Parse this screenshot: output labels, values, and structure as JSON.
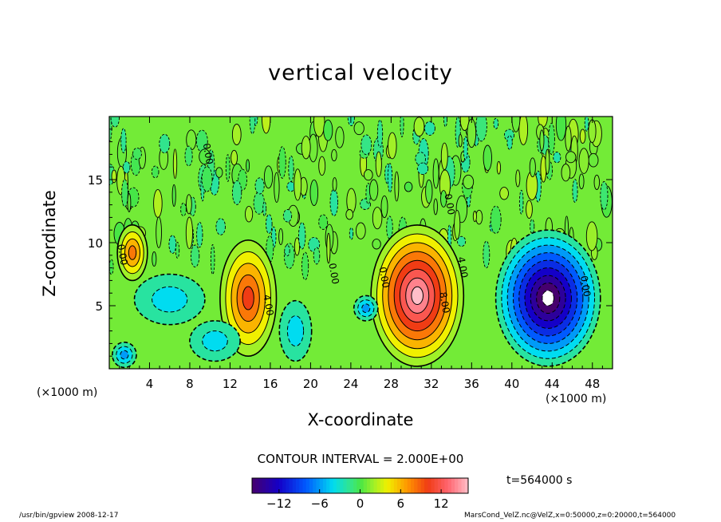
{
  "chart_data": {
    "type": "contour",
    "title": "vertical velocity",
    "xlabel": "X-coordinate",
    "ylabel": "Z-coordinate",
    "x_unit": "(×1000 m)",
    "z_unit": "(×1000 m)",
    "xlim": [
      0,
      50
    ],
    "zlim": [
      0,
      20
    ],
    "x_ticks": [
      4,
      8,
      12,
      16,
      20,
      24,
      28,
      32,
      36,
      40,
      44,
      48
    ],
    "z_ticks": [
      5,
      10,
      15
    ],
    "contour_interval_text": "CONTOUR INTERVAL = 2.000E+00",
    "colorbar": {
      "min": -16,
      "max": 16,
      "ticks": [
        -12,
        -6,
        0,
        6,
        12
      ],
      "tick_labels": [
        "−12",
        "−6",
        "0",
        "6",
        "12"
      ]
    },
    "contour_labels": [
      {
        "text": "4.00",
        "x": 15.5,
        "z": 5.0
      },
      {
        "text": "0.00",
        "x": 22.0,
        "z": 7.5
      },
      {
        "text": "0.00",
        "x": 27.0,
        "z": 7.2
      },
      {
        "text": "4.00",
        "x": 34.8,
        "z": 8.0
      },
      {
        "text": "8.00",
        "x": 33.0,
        "z": 5.2
      },
      {
        "text": "0.00",
        "x": 33.5,
        "z": 13.0
      },
      {
        "text": "0.00",
        "x": 9.5,
        "z": 17.0
      },
      {
        "text": "0.00",
        "x": 1.0,
        "z": 9.0
      },
      {
        "text": "0.00",
        "x": 47.0,
        "z": 6.5
      }
    ],
    "cells": [
      {
        "x": 2.3,
        "z": 9.2,
        "rx": 1.5,
        "rz": 2.2,
        "peak": 8
      },
      {
        "x": 13.8,
        "z": 5.6,
        "rx": 2.8,
        "rz": 4.6,
        "peak": 10
      },
      {
        "x": 30.6,
        "z": 5.8,
        "rx": 4.6,
        "rz": 5.6,
        "peak": 16
      },
      {
        "x": 43.6,
        "z": 5.6,
        "rx": 5.2,
        "rz": 5.4,
        "peak": -18
      },
      {
        "x": 1.5,
        "z": 1.1,
        "rx": 1.2,
        "rz": 1.0,
        "peak": -5
      },
      {
        "x": 10.5,
        "z": 2.2,
        "rx": 2.5,
        "rz": 1.6,
        "peak": -3
      },
      {
        "x": 18.5,
        "z": 3.0,
        "rx": 1.6,
        "rz": 2.4,
        "peak": -4
      },
      {
        "x": 25.5,
        "z": 4.8,
        "rx": 1.2,
        "rz": 1.0,
        "peak": -5
      },
      {
        "x": 6.0,
        "z": 5.5,
        "rx": 3.5,
        "rz": 2.0,
        "peak": -2
      }
    ],
    "time_label": "t=564000 s",
    "footer_left": "/usr/bin/gpview   2008-12-17",
    "footer_right": "MarsCond_VelZ.nc@VelZ,x=0:50000,z=0:20000,t=564000"
  }
}
